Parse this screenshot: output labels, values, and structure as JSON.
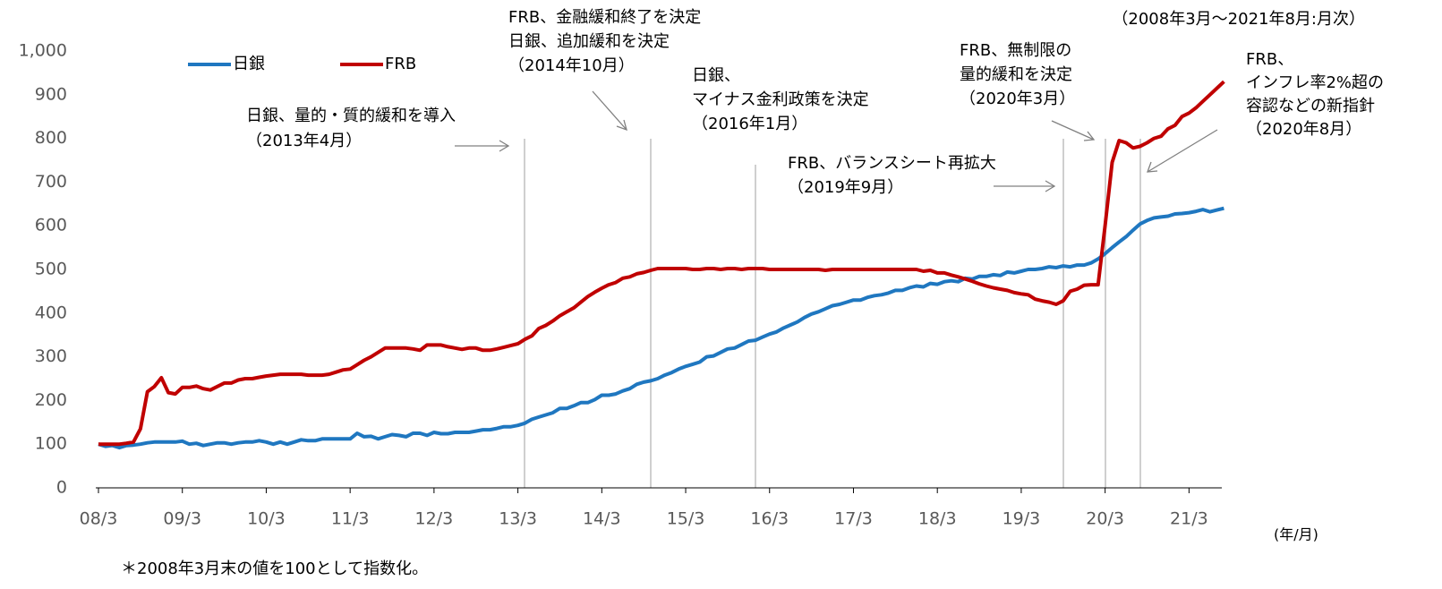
{
  "chart_data": {
    "type": "line",
    "subtitle": "（2008年3月～2021年8月:月次）",
    "x_label": "(年/月)",
    "footnote": "＊2008年3月末の値を100として指数化。",
    "categories": [
      "08/3",
      null,
      null,
      null,
      null,
      null,
      null,
      null,
      null,
      null,
      null,
      null,
      "09/3",
      null,
      null,
      null,
      null,
      null,
      null,
      null,
      null,
      null,
      null,
      null,
      "10/3",
      null,
      null,
      null,
      null,
      null,
      null,
      null,
      null,
      null,
      null,
      null,
      "11/3",
      null,
      null,
      null,
      null,
      null,
      null,
      null,
      null,
      null,
      null,
      null,
      "12/3",
      null,
      null,
      null,
      null,
      null,
      null,
      null,
      null,
      null,
      null,
      null,
      "13/3",
      null,
      null,
      null,
      null,
      null,
      null,
      null,
      null,
      null,
      null,
      null,
      "14/3",
      null,
      null,
      null,
      null,
      null,
      null,
      null,
      null,
      null,
      null,
      null,
      "15/3",
      null,
      null,
      null,
      null,
      null,
      null,
      null,
      null,
      null,
      null,
      null,
      "16/3",
      null,
      null,
      null,
      null,
      null,
      null,
      null,
      null,
      null,
      null,
      null,
      "17/3",
      null,
      null,
      null,
      null,
      null,
      null,
      null,
      null,
      null,
      null,
      null,
      "18/3",
      null,
      null,
      null,
      null,
      null,
      null,
      null,
      null,
      null,
      null,
      null,
      "19/3",
      null,
      null,
      null,
      null,
      null,
      null,
      null,
      null,
      null,
      null,
      null,
      "20/3",
      null,
      null,
      null,
      null,
      null,
      null,
      null,
      null,
      null,
      null,
      null,
      "21/3",
      null,
      null,
      null,
      null,
      null
    ],
    "series": [
      {
        "name": "日銀",
        "color": "#1f77c0",
        "values": [
          100,
          95,
          97,
          92,
          97,
          98,
          100,
          103,
          105,
          105,
          105,
          105,
          107,
          100,
          102,
          97,
          100,
          103,
          103,
          100,
          103,
          105,
          105,
          108,
          105,
          100,
          105,
          100,
          105,
          110,
          108,
          108,
          112,
          112,
          112,
          112,
          112,
          125,
          117,
          118,
          112,
          117,
          122,
          120,
          117,
          125,
          125,
          120,
          127,
          124,
          124,
          127,
          127,
          127,
          130,
          133,
          133,
          136,
          140,
          140,
          143,
          148,
          157,
          162,
          167,
          172,
          182,
          182,
          188,
          195,
          195,
          202,
          212,
          212,
          215,
          222,
          227,
          237,
          242,
          245,
          250,
          258,
          264,
          272,
          278,
          283,
          288,
          300,
          302,
          310,
          318,
          320,
          328,
          336,
          338,
          345,
          352,
          357,
          366,
          373,
          380,
          390,
          398,
          403,
          410,
          417,
          420,
          425,
          430,
          430,
          436,
          440,
          442,
          446,
          452,
          452,
          458,
          462,
          460,
          468,
          466,
          472,
          474,
          472,
          480,
          478,
          484,
          484,
          488,
          486,
          494,
          492,
          496,
          500,
          500,
          502,
          506,
          504,
          508,
          506,
          510,
          510,
          515,
          524,
          536,
          550,
          563,
          575,
          590,
          604,
          612,
          618,
          620,
          622,
          627,
          628,
          630,
          633,
          637,
          632,
          636,
          640
        ]
      },
      {
        "name": "FRB",
        "color": "#c00000",
        "values": [
          100,
          100,
          100,
          100,
          102,
          105,
          135,
          220,
          232,
          252,
          218,
          215,
          230,
          230,
          233,
          227,
          224,
          232,
          240,
          240,
          247,
          250,
          250,
          253,
          256,
          258,
          260,
          260,
          260,
          260,
          258,
          258,
          258,
          260,
          265,
          270,
          272,
          282,
          292,
          300,
          310,
          320,
          320,
          320,
          320,
          318,
          315,
          327,
          327,
          327,
          323,
          320,
          317,
          320,
          320,
          315,
          315,
          318,
          322,
          326,
          330,
          340,
          348,
          365,
          372,
          382,
          394,
          403,
          412,
          425,
          438,
          448,
          457,
          465,
          470,
          480,
          483,
          490,
          493,
          498,
          502,
          502,
          502,
          502,
          502,
          500,
          500,
          502,
          502,
          500,
          502,
          502,
          500,
          502,
          502,
          502,
          500,
          500,
          500,
          500,
          500,
          500,
          500,
          500,
          498,
          500,
          500,
          500,
          500,
          500,
          500,
          500,
          500,
          500,
          500,
          500,
          500,
          500,
          496,
          498,
          492,
          492,
          487,
          483,
          478,
          473,
          467,
          462,
          458,
          455,
          452,
          447,
          444,
          442,
          432,
          428,
          425,
          420,
          428,
          450,
          455,
          464,
          465,
          465,
          600,
          745,
          795,
          790,
          778,
          782,
          790,
          800,
          805,
          822,
          830,
          850,
          858,
          870,
          885,
          900,
          915,
          930
        ]
      }
    ],
    "ylim": [
      0,
      1000
    ],
    "yticks": [
      0,
      100,
      200,
      300,
      400,
      500,
      600,
      700,
      800,
      900,
      {
        "value": 1000,
        "label": "1,000"
      }
    ],
    "legend": "upper left",
    "annotations": [
      {
        "lines": [
          "日銀、量的・質的緩和を導入",
          "（2013年4月）"
        ]
      },
      {
        "lines": [
          "FRB、金融緩和終了を決定",
          "日銀、追加緩和を決定",
          "（2014年10月）"
        ]
      },
      {
        "lines": [
          "日銀、",
          "マイナス金利政策を決定",
          "（2016年1月）"
        ]
      },
      {
        "lines": [
          "FRB、バランスシート再拡大",
          "（2019年9月）"
        ]
      },
      {
        "lines": [
          "FRB、無制限の",
          "量的緩和を決定",
          "（2020年3月）"
        ]
      },
      {
        "lines": [
          "FRB、",
          "インフレ率2%超の",
          "容認などの新指針",
          "（2020年8月）"
        ]
      }
    ]
  }
}
